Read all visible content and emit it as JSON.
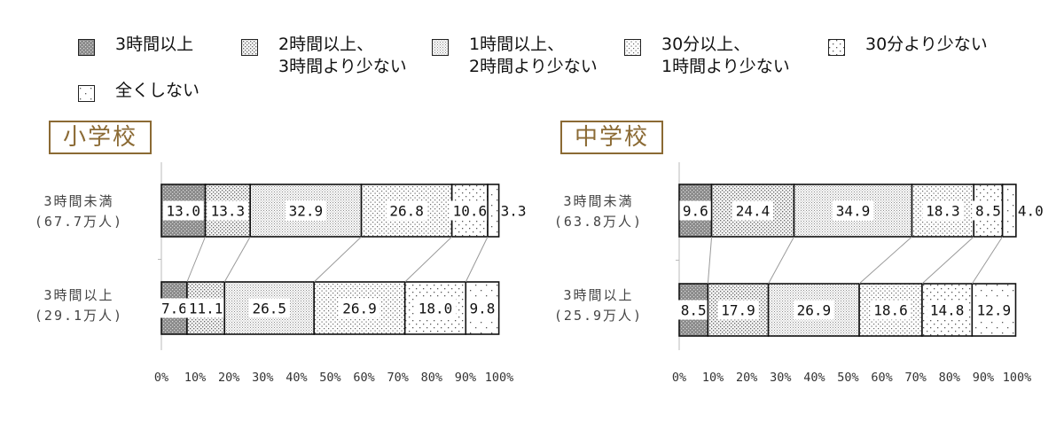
{
  "legend": [
    {
      "pattern": "p0",
      "lines": [
        "3時間以上"
      ]
    },
    {
      "pattern": "p1",
      "lines": [
        "2時間以上、",
        "3時間より少ない"
      ]
    },
    {
      "pattern": "p2",
      "lines": [
        "1時間以上、",
        "2時間より少ない"
      ]
    },
    {
      "pattern": "p3",
      "lines": [
        "30分以上、",
        "1時間より少ない"
      ]
    },
    {
      "pattern": "p4",
      "lines": [
        "30分より少ない"
      ]
    },
    {
      "pattern": "p5",
      "lines": [
        "全くしない"
      ]
    }
  ],
  "chart_data": [
    {
      "type": "bar",
      "title": "小学校",
      "stacked": true,
      "orientation": "horizontal",
      "categories": [
        {
          "lines": [
            "3時間未満",
            "(67.7万人)"
          ]
        },
        {
          "lines": [
            "3時間以上",
            "(29.1万人)"
          ]
        }
      ],
      "series": [
        {
          "name": "3時間以上",
          "values": [
            13.0,
            7.6
          ],
          "labels": [
            "13.0",
            "7.6"
          ]
        },
        {
          "name": "2時間以上、3時間より少ない",
          "values": [
            13.3,
            11.1
          ],
          "labels": [
            "13.3",
            "11.1"
          ]
        },
        {
          "name": "1時間以上、2時間より少ない",
          "values": [
            32.9,
            26.5
          ],
          "labels": [
            "32.9",
            "26.5"
          ]
        },
        {
          "name": "30分以上、1時間より少ない",
          "values": [
            26.8,
            26.9
          ],
          "labels": [
            "26.8",
            "26.9"
          ]
        },
        {
          "name": "30分より少ない",
          "values": [
            10.6,
            18.0
          ],
          "labels": [
            "10.6",
            "18.0"
          ]
        },
        {
          "name": "全くしない",
          "values": [
            3.3,
            9.8
          ],
          "labels": [
            "3.3",
            "9.8"
          ]
        }
      ],
      "xlim": [
        0,
        100
      ],
      "xticks": [
        "0%",
        "10%",
        "20%",
        "30%",
        "40%",
        "50%",
        "60%",
        "70%",
        "80%",
        "90%",
        "100%"
      ],
      "xlabel": "",
      "ylabel": ""
    },
    {
      "type": "bar",
      "title": "中学校",
      "stacked": true,
      "orientation": "horizontal",
      "categories": [
        {
          "lines": [
            "3時間未満",
            "(63.8万人)"
          ]
        },
        {
          "lines": [
            "3時間以上",
            "(25.9万人)"
          ]
        }
      ],
      "series": [
        {
          "name": "3時間以上",
          "values": [
            9.6,
            8.5
          ],
          "labels": [
            "9.6",
            "8.5"
          ]
        },
        {
          "name": "2時間以上、3時間より少ない",
          "values": [
            24.4,
            17.9
          ],
          "labels": [
            "24.4",
            "17.9"
          ]
        },
        {
          "name": "1時間以上、2時間より少ない",
          "values": [
            34.9,
            26.9
          ],
          "labels": [
            "34.9",
            "26.9"
          ]
        },
        {
          "name": "30分以上、1時間より少ない",
          "values": [
            18.3,
            18.6
          ],
          "labels": [
            "18.3",
            "18.6"
          ]
        },
        {
          "name": "30分より少ない",
          "values": [
            8.5,
            14.8
          ],
          "labels": [
            "8.5",
            "14.8"
          ]
        },
        {
          "name": "全くしない",
          "values": [
            4.0,
            12.9
          ],
          "labels": [
            "4.0",
            "12.9"
          ]
        }
      ],
      "xlim": [
        0,
        100
      ],
      "xticks": [
        "0%",
        "10%",
        "20%",
        "30%",
        "40%",
        "50%",
        "60%",
        "70%",
        "80%",
        "90%",
        "100%"
      ],
      "xlabel": "",
      "ylabel": ""
    }
  ]
}
